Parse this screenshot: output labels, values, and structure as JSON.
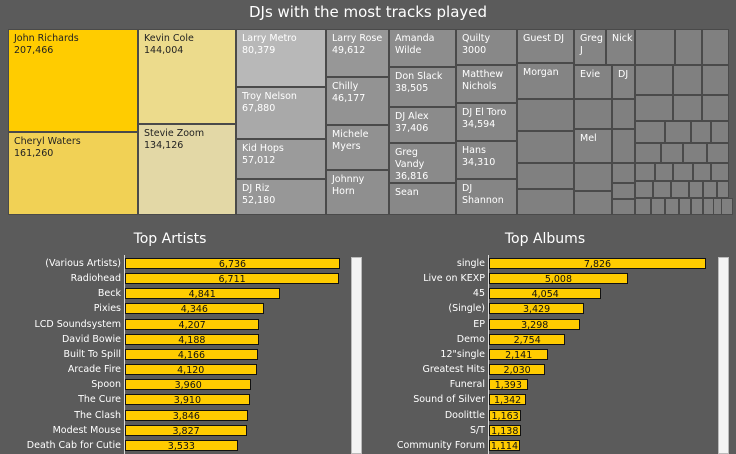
{
  "title": "DJs with the  most tracks played",
  "chart_data": [
    {
      "type": "treemap",
      "title": "DJs with the  most tracks played",
      "items": [
        {
          "label": "John Richards",
          "value": 207466,
          "value_text": "207,466"
        },
        {
          "label": "Cheryl Waters",
          "value": 161260,
          "value_text": "161,260"
        },
        {
          "label": "Kevin Cole",
          "value": 144004,
          "value_text": "144,004"
        },
        {
          "label": "Stevie Zoom",
          "value": 134126,
          "value_text": "134,126"
        },
        {
          "label": "Larry Metro",
          "value": 80379,
          "value_text": "80,379"
        },
        {
          "label": "Troy Nelson",
          "value": 67880,
          "value_text": "67,880"
        },
        {
          "label": "Kid Hops",
          "value": 57012,
          "value_text": "57,012"
        },
        {
          "label": "DJ Riz",
          "value": 52180,
          "value_text": "52,180"
        },
        {
          "label": "Larry Rose",
          "value": 49612,
          "value_text": "49,612"
        },
        {
          "label": "Chilly",
          "value": 46177,
          "value_text": "46,177"
        },
        {
          "label": "Michele Myers",
          "value": null,
          "value_text": ""
        },
        {
          "label": "Johnny Horn",
          "value": null,
          "value_text": ""
        },
        {
          "label": "Amanda Wilde",
          "value": null,
          "value_text": ""
        },
        {
          "label": "Don Slack",
          "value": 38505,
          "value_text": "38,505"
        },
        {
          "label": "DJ Alex",
          "value": 37406,
          "value_text": "37,406"
        },
        {
          "label": "Greg Vandy",
          "value": 36816,
          "value_text": "36,816"
        },
        {
          "label": "Sean",
          "value": null,
          "value_text": ""
        },
        {
          "label": "Quilty",
          "value": 3000,
          "value_text": "3000"
        },
        {
          "label": "Matthew Nichols",
          "value": null,
          "value_text": ""
        },
        {
          "label": "DJ El Toro",
          "value": 34594,
          "value_text": "34,594"
        },
        {
          "label": "Hans",
          "value": 34310,
          "value_text": "34,310"
        },
        {
          "label": "DJ Shannon",
          "value": null,
          "value_text": ""
        },
        {
          "label": "Guest DJ",
          "value": null,
          "value_text": ""
        },
        {
          "label": "Morgan",
          "value": null,
          "value_text": ""
        },
        {
          "label": "Greg J",
          "value": null,
          "value_text": ""
        },
        {
          "label": "Nick",
          "value": null,
          "value_text": ""
        },
        {
          "label": "Evie",
          "value": null,
          "value_text": ""
        },
        {
          "label": "DJ",
          "value": null,
          "value_text": ""
        },
        {
          "label": "Mel",
          "value": null,
          "value_text": ""
        }
      ]
    },
    {
      "type": "bar",
      "orientation": "horizontal",
      "title": "Top Artists",
      "categories": [
        "(Various Artists)",
        "Radiohead",
        "Beck",
        "Pixies",
        "LCD Soundsystem",
        "David Bowie",
        "Built To Spill",
        "Arcade Fire",
        "Spoon",
        "The Cure",
        "The Clash",
        "Modest Mouse",
        "Death Cab for Cutie"
      ],
      "values": [
        6736,
        6711,
        4841,
        4346,
        4207,
        4188,
        4166,
        4120,
        3960,
        3910,
        3846,
        3827,
        3533
      ],
      "value_labels": [
        "6,736",
        "6,711",
        "4,841",
        "4,346",
        "4,207",
        "4,188",
        "4,166",
        "4,120",
        "3,960",
        "3,910",
        "3,846",
        "3,827",
        "3,533"
      ],
      "xlim": [
        0,
        6736
      ]
    },
    {
      "type": "bar",
      "orientation": "horizontal",
      "title": "Top Albums",
      "categories": [
        "single",
        "Live on KEXP",
        "45",
        "(Single)",
        "EP",
        "Demo",
        "12\"single",
        "Greatest Hits",
        "Funeral",
        "Sound of Silver",
        "Doolittle",
        "S/T",
        "Community Forum"
      ],
      "values": [
        7826,
        5008,
        4054,
        3429,
        3298,
        2754,
        2141,
        2030,
        1393,
        1342,
        1163,
        1138,
        1114
      ],
      "value_labels": [
        "7,826",
        "5,008",
        "4,054",
        "3,429",
        "3,298",
        "2,754",
        "2,141",
        "2,030",
        "1,393",
        "1,342",
        "1,163",
        "1,138",
        "1,114"
      ],
      "xlim": [
        0,
        7826
      ]
    }
  ],
  "colors": {
    "bar": "#ffcc00",
    "background": "#5b5b5b",
    "treemap_gray": "#8c8c8c"
  }
}
